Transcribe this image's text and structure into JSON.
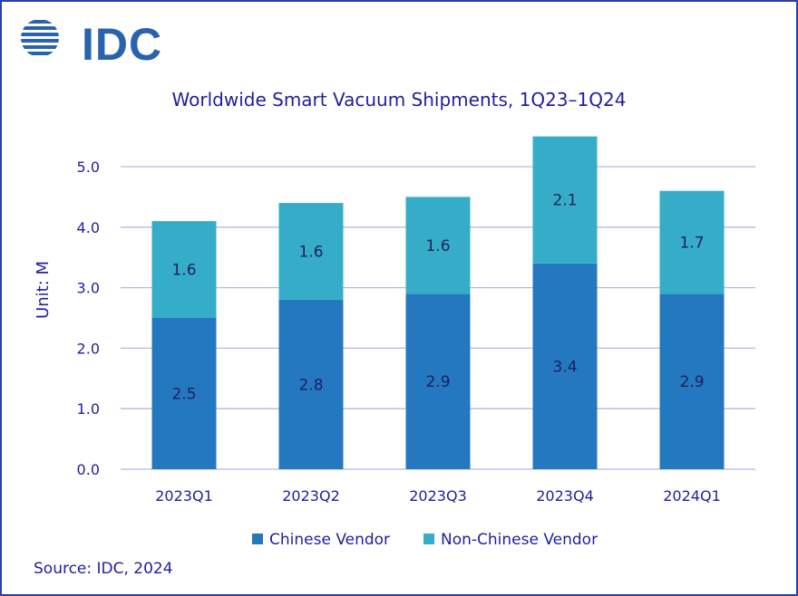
{
  "brand": {
    "logo_text": "IDC",
    "logo_color": "#2a63ad"
  },
  "source": "Source: IDC, 2024",
  "chart_data": {
    "type": "bar",
    "stacked": true,
    "title": "Worldwide Smart Vacuum Shipments, 1Q23–1Q24",
    "ylabel": "Unit: M",
    "xlabel": "",
    "ylim": [
      0,
      5.5
    ],
    "yticks": [
      "0.0",
      "1.0",
      "2.0",
      "3.0",
      "4.0",
      "5.0"
    ],
    "grid": true,
    "legend_position": "bottom",
    "categories": [
      "2023Q1",
      "2023Q2",
      "2023Q3",
      "2023Q4",
      "2024Q1"
    ],
    "series": [
      {
        "name": "Chinese Vendor",
        "color": "#2478bf",
        "values": [
          2.5,
          2.8,
          2.9,
          3.4,
          2.9
        ],
        "labels": [
          "2.5",
          "2.8",
          "2.9",
          "3.4",
          "2.9"
        ]
      },
      {
        "name": "Non-Chinese Vendor",
        "color": "#36adc8",
        "values": [
          1.6,
          1.6,
          1.6,
          2.1,
          1.7
        ],
        "labels": [
          "1.6",
          "1.6",
          "1.6",
          "2.1",
          "1.7"
        ]
      }
    ]
  }
}
